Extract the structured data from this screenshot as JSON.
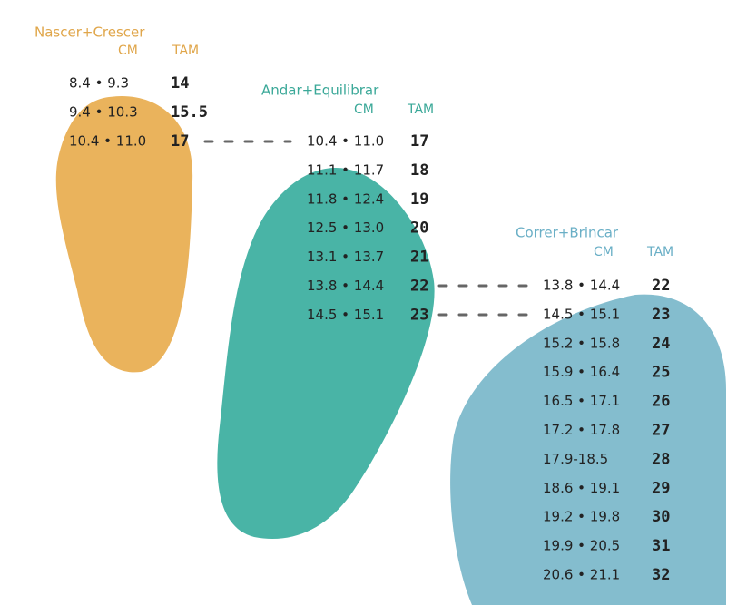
{
  "groups": [
    {
      "title": "Nascer+Crescer",
      "cm_header": "CM",
      "tam_header": "TAM",
      "rows": [
        [
          "8.4 • 9.3",
          "14"
        ],
        [
          "9.4 • 10.3",
          "15.5"
        ],
        [
          "10.4 • 11.0",
          "17"
        ]
      ]
    },
    {
      "title": "Andar+Equilibrar",
      "cm_header": "CM",
      "tam_header": "TAM",
      "rows": [
        [
          "10.4 • 11.0",
          "17"
        ],
        [
          "11.1 • 11.7",
          "18"
        ],
        [
          "11.8 • 12.4",
          "19"
        ],
        [
          "12.5 • 13.0",
          "20"
        ],
        [
          "13.1 • 13.7",
          "21"
        ],
        [
          "13.8 • 14.4",
          "22"
        ],
        [
          "14.5 • 15.1",
          "23"
        ]
      ]
    },
    {
      "title": "Correr+Brincar",
      "cm_header": "CM",
      "tam_header": "TAM",
      "rows": [
        [
          "13.8 • 14.4",
          "22"
        ],
        [
          "14.5 • 15.1",
          "23"
        ],
        [
          "15.2 • 15.8",
          "24"
        ],
        [
          "15.9 • 16.4",
          "25"
        ],
        [
          "16.5 • 17.1",
          "26"
        ],
        [
          "17.2 • 17.8",
          "27"
        ],
        [
          "17.9-18.5",
          "28"
        ],
        [
          "18.6 • 19.1",
          "29"
        ],
        [
          "19.2 • 19.8",
          "30"
        ],
        [
          "19.9 • 20.5",
          "31"
        ],
        [
          "20.6 • 21.1",
          "32"
        ]
      ]
    }
  ]
}
